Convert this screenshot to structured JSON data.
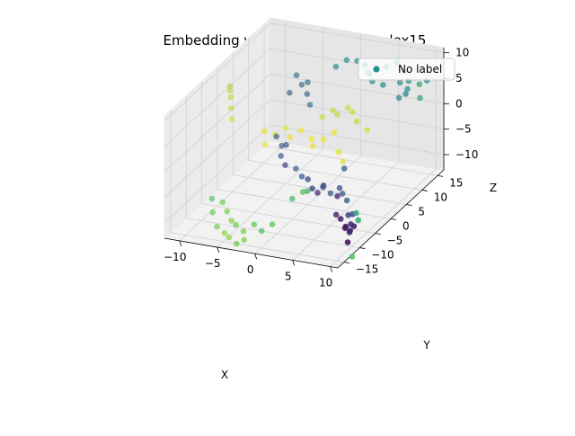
{
  "chart_data": {
    "type": "scatter",
    "projection": "3d",
    "title": "Embedding with randomstd1perplex15",
    "xlabel": "X",
    "ylabel": "Y",
    "zlabel": "Z",
    "x_ticks": [
      -10,
      -5,
      0,
      5,
      10
    ],
    "y_ticks": [
      -15,
      -10,
      -5,
      0,
      5,
      10,
      15
    ],
    "z_ticks": [
      -10,
      -5,
      0,
      5,
      10
    ],
    "xlim": [
      -12,
      11
    ],
    "ylim": [
      -17,
      17
    ],
    "zlim": [
      -13,
      11
    ],
    "grid": true,
    "legend": {
      "placement": "top-right",
      "entries": [
        "No label"
      ]
    },
    "colormap": "viridis",
    "series": [
      {
        "name": "No label",
        "color": "#21918c",
        "points": [
          {
            "x": -9.5,
            "y": -2,
            "z": 9,
            "c": 0.88
          },
          {
            "x": -9.3,
            "y": -2.2,
            "z": 7,
            "c": 0.9
          },
          {
            "x": -9.2,
            "y": -2.4,
            "z": 5,
            "c": 0.92
          },
          {
            "x": -9,
            "y": -2.6,
            "z": 3,
            "c": 0.93
          },
          {
            "x": -9.6,
            "y": -1.8,
            "z": 8,
            "c": 0.89
          },
          {
            "x": -4,
            "y": 6,
            "z": 8,
            "c": 0.35
          },
          {
            "x": -3.5,
            "y": 6.5,
            "z": 6,
            "c": 0.33
          },
          {
            "x": -3,
            "y": 7,
            "z": 4,
            "c": 0.34
          },
          {
            "x": -2.5,
            "y": 6,
            "z": 7,
            "c": 0.36
          },
          {
            "x": -4.5,
            "y": 5,
            "z": 5,
            "c": 0.32
          },
          {
            "x": -2,
            "y": 5.5,
            "z": 3,
            "c": 0.37
          },
          {
            "x": 0,
            "y": 9,
            "z": 9,
            "c": 0.45
          },
          {
            "x": 1,
            "y": 10,
            "z": 10,
            "c": 0.48
          },
          {
            "x": 2,
            "y": 11,
            "z": 9.5,
            "c": 0.5
          },
          {
            "x": 3,
            "y": 11,
            "z": 9,
            "c": 0.52
          },
          {
            "x": 4,
            "y": 10,
            "z": 8,
            "c": 0.6
          },
          {
            "x": 5,
            "y": 13,
            "z": 8,
            "c": 0.5
          },
          {
            "x": 6,
            "y": 14,
            "z": 8.5,
            "c": 0.52
          },
          {
            "x": 7,
            "y": 14,
            "z": 7,
            "c": 0.55
          },
          {
            "x": 8,
            "y": 13,
            "z": 6,
            "c": 0.5
          },
          {
            "x": 9,
            "y": 14,
            "z": 5,
            "c": 0.6
          },
          {
            "x": 6,
            "y": 15,
            "z": 4,
            "c": 0.48
          },
          {
            "x": 7,
            "y": 15,
            "z": 3,
            "c": 0.46
          },
          {
            "x": 8,
            "y": 12,
            "z": 4,
            "c": 0.44
          },
          {
            "x": 5,
            "y": 12,
            "z": 5,
            "c": 0.47
          },
          {
            "x": 4,
            "y": 11,
            "z": 6,
            "c": 0.49
          },
          {
            "x": 9.5,
            "y": 13,
            "z": 3,
            "c": 0.58
          },
          {
            "x": 10,
            "y": 14,
            "z": 6,
            "c": 0.5
          },
          {
            "x": 3,
            "y": 12,
            "z": 7,
            "c": 0.51
          },
          {
            "x": 6.5,
            "y": 13.5,
            "z": 2,
            "c": 0.45
          },
          {
            "x": -5,
            "y": 2,
            "z": -2,
            "c": 0.28
          },
          {
            "x": -4.5,
            "y": 2.5,
            "z": -4,
            "c": 0.3
          },
          {
            "x": -4,
            "y": 1,
            "z": -5,
            "c": 0.26
          },
          {
            "x": -3,
            "y": 0,
            "z": -6,
            "c": 0.2
          },
          {
            "x": -3.5,
            "y": 1.5,
            "z": -3,
            "c": 0.25
          },
          {
            "x": -2,
            "y": 1,
            "z": -7,
            "c": 0.3
          },
          {
            "x": -1,
            "y": 0.5,
            "z": -8,
            "c": 0.27
          },
          {
            "x": 0,
            "y": 0,
            "z": -8,
            "c": 0.2
          },
          {
            "x": 1,
            "y": -1,
            "z": -9,
            "c": 0.18
          },
          {
            "x": 1.5,
            "y": -0.5,
            "z": -10,
            "c": 0.15
          },
          {
            "x": 2,
            "y": 0,
            "z": -9,
            "c": 0.2
          },
          {
            "x": 2.5,
            "y": -1,
            "z": -8,
            "c": 0.25
          },
          {
            "x": 3,
            "y": 0,
            "z": -10,
            "c": 0.3
          },
          {
            "x": 4,
            "y": 0.5,
            "z": -9,
            "c": 0.28
          },
          {
            "x": 5,
            "y": -1,
            "z": -9,
            "c": 0.3
          },
          {
            "x": 6,
            "y": -2,
            "z": -9.5,
            "c": 0.3
          },
          {
            "x": 4,
            "y": 2,
            "z": -6,
            "c": 0.3
          },
          {
            "x": 3.5,
            "y": 1,
            "z": -11,
            "c": 0.1
          },
          {
            "x": 5,
            "y": -3,
            "z": -12,
            "c": 0.1
          },
          {
            "x": 6,
            "y": -4,
            "z": -12,
            "c": 0.05
          },
          {
            "x": 7,
            "y": -5,
            "z": -13,
            "c": 0.08
          },
          {
            "x": 7.5,
            "y": -6,
            "z": -12,
            "c": 0.05
          },
          {
            "x": 8,
            "y": -6,
            "z": -13,
            "c": 0.12
          },
          {
            "x": 8.5,
            "y": -7,
            "z": -12,
            "c": 0.1
          },
          {
            "x": 9,
            "y": -7,
            "z": -11,
            "c": 0.08
          },
          {
            "x": 9,
            "y": -8,
            "z": -10,
            "c": 0.15
          },
          {
            "x": 10,
            "y": -8,
            "z": -9,
            "c": 0.62
          },
          {
            "x": 9.5,
            "y": -7.5,
            "z": -8,
            "c": 0.6
          },
          {
            "x": 9,
            "y": -9,
            "z": -13,
            "c": 0.05
          },
          {
            "x": 10,
            "y": -10,
            "z": -15,
            "c": 0.72
          },
          {
            "x": 8,
            "y": -5,
            "z": -10,
            "c": 0.22
          },
          {
            "x": 7,
            "y": -4,
            "z": -11,
            "c": 0.18
          },
          {
            "x": -6,
            "y": 4,
            "z": -3,
            "c": 0.95
          },
          {
            "x": -5,
            "y": 5,
            "z": -2,
            "c": 0.97
          },
          {
            "x": -4,
            "y": 4,
            "z": -3,
            "c": 0.96
          },
          {
            "x": -3,
            "y": 5,
            "z": -2,
            "c": 0.98
          },
          {
            "x": -2,
            "y": 6,
            "z": -4,
            "c": 0.99
          },
          {
            "x": -1,
            "y": 7,
            "z": 0,
            "c": 0.9
          },
          {
            "x": 0,
            "y": 8,
            "z": 1,
            "c": 0.9
          },
          {
            "x": 1,
            "y": 7,
            "z": 1,
            "c": 0.89
          },
          {
            "x": 2,
            "y": 8,
            "z": 2,
            "c": 0.91
          },
          {
            "x": 3,
            "y": 7,
            "z": 2,
            "c": 0.92
          },
          {
            "x": 4,
            "y": 6,
            "z": 1,
            "c": 0.9
          },
          {
            "x": 5,
            "y": 7,
            "z": -1,
            "c": 0.93
          },
          {
            "x": 1,
            "y": 6,
            "z": -2,
            "c": 0.97
          },
          {
            "x": 0,
            "y": 5,
            "z": -3,
            "c": 0.98
          },
          {
            "x": -1,
            "y": 4,
            "z": -4,
            "c": 0.97
          },
          {
            "x": 2,
            "y": 5,
            "z": -5,
            "c": 0.96
          },
          {
            "x": 3,
            "y": 4,
            "z": -6,
            "c": 0.95
          },
          {
            "x": -7,
            "y": 3,
            "z": -2,
            "c": 0.96
          },
          {
            "x": -6.5,
            "y": 2,
            "z": -4,
            "c": 0.97
          },
          {
            "x": -8,
            "y": -8,
            "z": -10,
            "c": 0.78
          },
          {
            "x": -7,
            "y": -9,
            "z": -11,
            "c": 0.8
          },
          {
            "x": -6,
            "y": -10,
            "z": -12,
            "c": 0.82
          },
          {
            "x": -5,
            "y": -11,
            "z": -12,
            "c": 0.78
          },
          {
            "x": -4,
            "y": -11,
            "z": -13,
            "c": 0.8
          },
          {
            "x": -3,
            "y": -10,
            "z": -12,
            "c": 0.76
          },
          {
            "x": -2,
            "y": -10,
            "z": -13,
            "c": 0.74
          },
          {
            "x": -1,
            "y": -9,
            "z": -12,
            "c": 0.75
          },
          {
            "x": -9,
            "y": -9,
            "z": -9,
            "c": 0.72
          },
          {
            "x": -8.5,
            "y": -10,
            "z": -11,
            "c": 0.77
          },
          {
            "x": -7.5,
            "y": -11,
            "z": -13,
            "c": 0.79
          },
          {
            "x": -5.5,
            "y": -12,
            "z": -14,
            "c": 0.82
          },
          {
            "x": -4.5,
            "y": -12,
            "z": -15,
            "c": 0.78
          },
          {
            "x": 0,
            "y": -5,
            "z": -9,
            "c": 0.7
          },
          {
            "x": 1,
            "y": -4,
            "z": -8,
            "c": 0.72
          },
          {
            "x": 2,
            "y": -5,
            "z": -7,
            "c": 0.68
          },
          {
            "x": -3.5,
            "y": -12,
            "z": -14,
            "c": 0.81
          },
          {
            "x": -6.5,
            "y": -11,
            "z": -14,
            "c": 0.84
          }
        ]
      }
    ]
  }
}
